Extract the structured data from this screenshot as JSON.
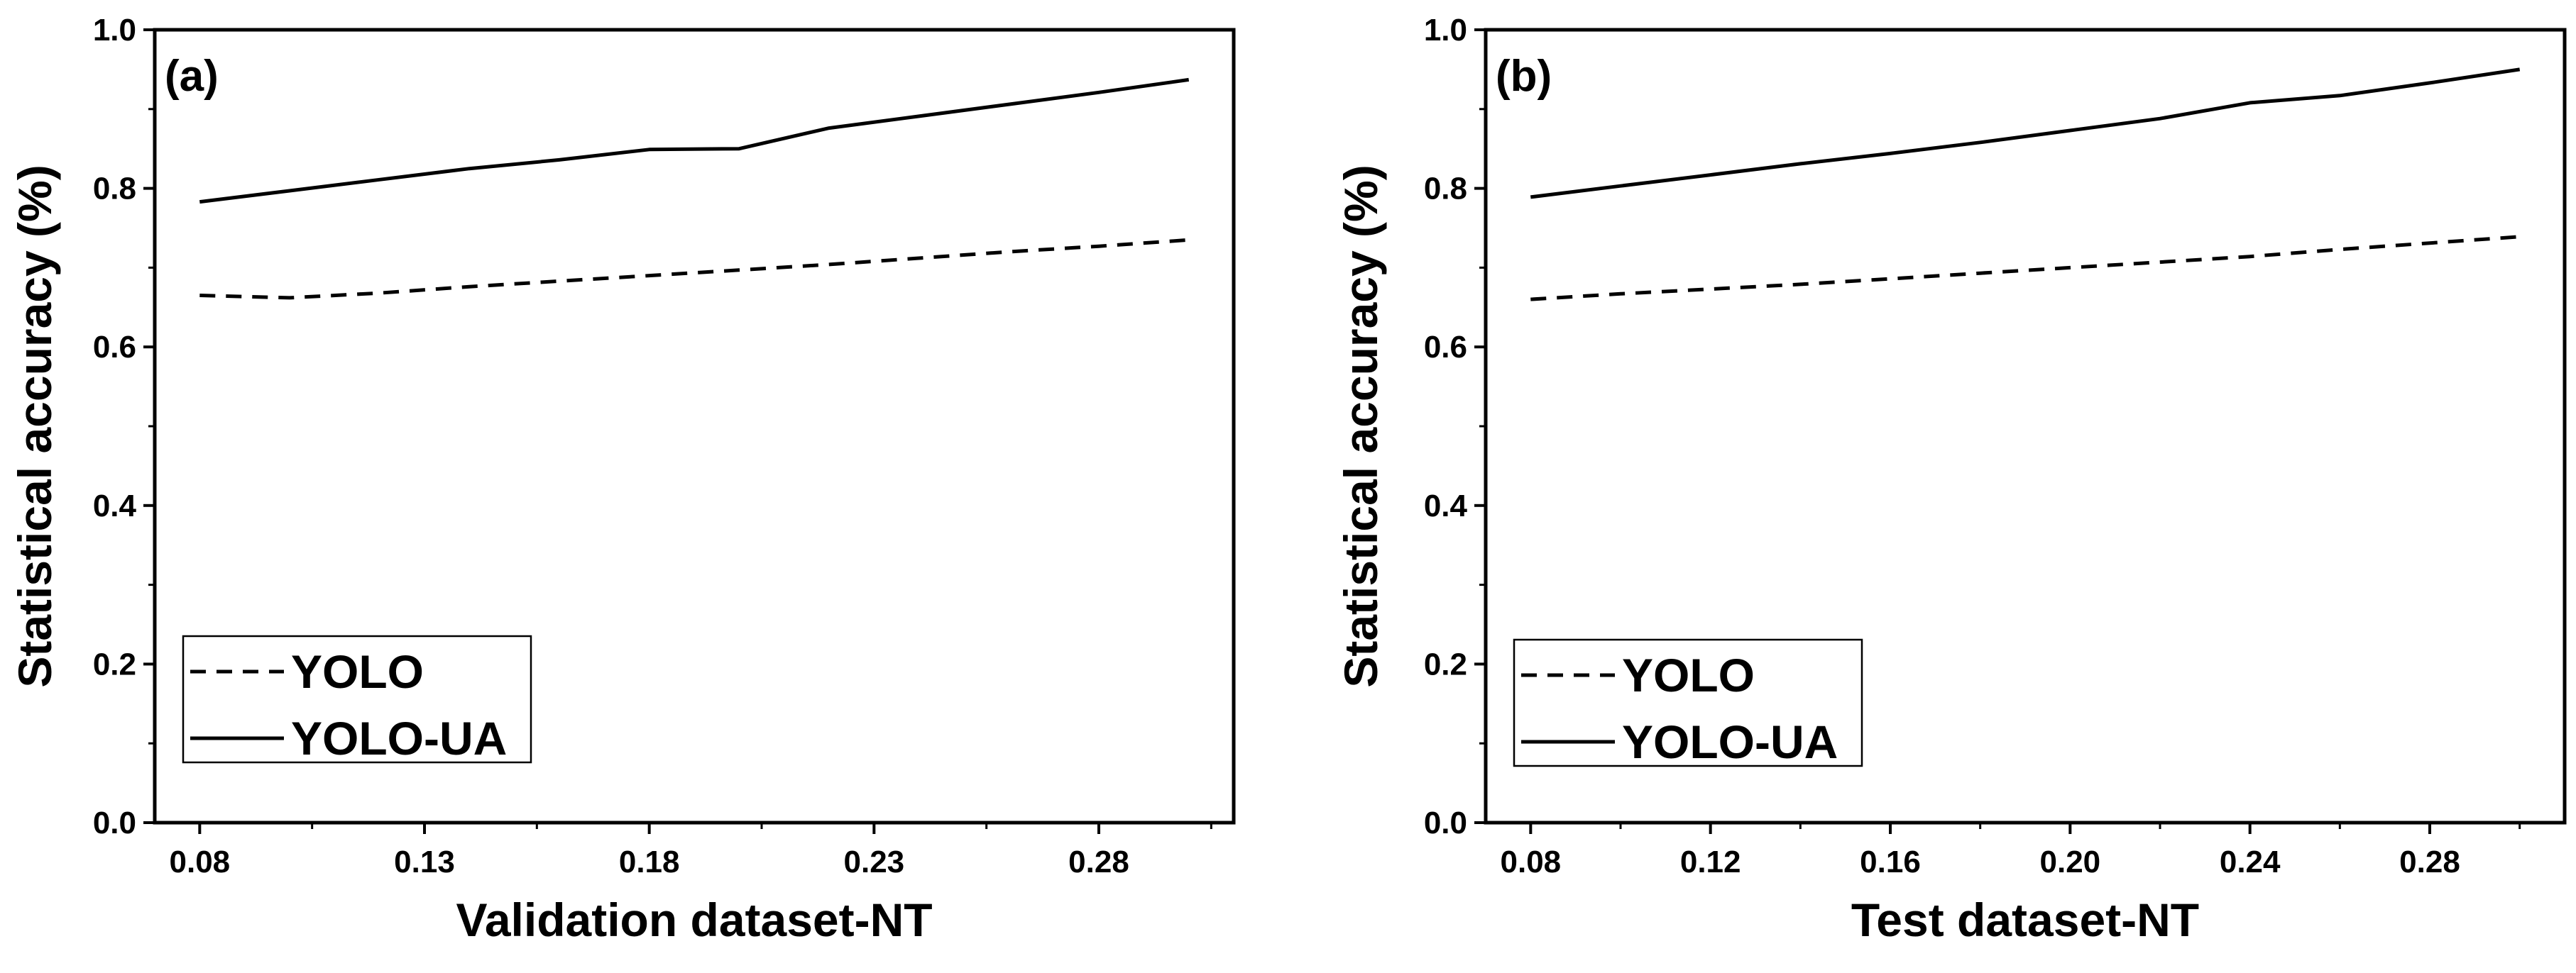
{
  "figure": {
    "background": "#ffffff",
    "line_color": "#000000"
  },
  "chart_data": [
    {
      "type": "line",
      "panel_label": "(a)",
      "title": "",
      "xlabel": "Validation dataset-NT",
      "ylabel": "Statistical accuracy (%)",
      "xlim": [
        0.07,
        0.31
      ],
      "ylim": [
        0.0,
        1.0
      ],
      "xticks": [
        0.08,
        0.13,
        0.18,
        0.23,
        0.28
      ],
      "xtick_labels": [
        "0.08",
        "0.13",
        "0.18",
        "0.23",
        "0.28"
      ],
      "xminor": [
        0.105,
        0.155,
        0.205,
        0.255,
        0.305
      ],
      "yticks": [
        0.0,
        0.2,
        0.4,
        0.6,
        0.8,
        1.0
      ],
      "ytick_labels": [
        "0.0",
        "0.2",
        "0.4",
        "0.6",
        "0.8",
        "1.0"
      ],
      "yminor": [
        0.1,
        0.3,
        0.5,
        0.7,
        0.9
      ],
      "grid": false,
      "legend_position": "lower-left",
      "series": [
        {
          "name": "YOLO",
          "style": "dashed",
          "x": [
            0.08,
            0.1,
            0.12,
            0.14,
            0.16,
            0.18,
            0.2,
            0.22,
            0.24,
            0.26,
            0.28,
            0.3
          ],
          "y": [
            0.665,
            0.662,
            0.668,
            0.676,
            0.683,
            0.69,
            0.697,
            0.704,
            0.712,
            0.72,
            0.727,
            0.735
          ]
        },
        {
          "name": "YOLO-UA",
          "style": "solid",
          "x": [
            0.08,
            0.1,
            0.12,
            0.14,
            0.16,
            0.18,
            0.2,
            0.22,
            0.24,
            0.26,
            0.28,
            0.3
          ],
          "y": [
            0.783,
            0.797,
            0.811,
            0.825,
            0.836,
            0.849,
            0.85,
            0.876,
            0.891,
            0.906,
            0.921,
            0.937
          ]
        }
      ]
    },
    {
      "type": "line",
      "panel_label": "(b)",
      "title": "",
      "xlabel": "Test dataset-NT",
      "ylabel": "Statistical accuracy (%)",
      "xlim": [
        0.07,
        0.31
      ],
      "ylim": [
        0.0,
        1.0
      ],
      "xticks": [
        0.08,
        0.12,
        0.16,
        0.2,
        0.24,
        0.28
      ],
      "xtick_labels": [
        "0.08",
        "0.12",
        "0.16",
        "0.20",
        "0.24",
        "0.28"
      ],
      "xminor": [
        0.1,
        0.14,
        0.18,
        0.22,
        0.26,
        0.3
      ],
      "yticks": [
        0.0,
        0.2,
        0.4,
        0.6,
        0.8,
        1.0
      ],
      "ytick_labels": [
        "0.0",
        "0.2",
        "0.4",
        "0.6",
        "0.8",
        "1.0"
      ],
      "yminor": [
        0.1,
        0.3,
        0.5,
        0.7,
        0.9
      ],
      "grid": false,
      "legend_position": "lower-left",
      "series": [
        {
          "name": "YOLO",
          "style": "dashed",
          "x": [
            0.08,
            0.1,
            0.12,
            0.14,
            0.16,
            0.18,
            0.2,
            0.22,
            0.24,
            0.26,
            0.28,
            0.3
          ],
          "y": [
            0.66,
            0.667,
            0.673,
            0.679,
            0.686,
            0.693,
            0.7,
            0.707,
            0.714,
            0.723,
            0.731,
            0.739
          ]
        },
        {
          "name": "YOLO-UA",
          "style": "solid",
          "x": [
            0.08,
            0.1,
            0.12,
            0.14,
            0.16,
            0.18,
            0.2,
            0.22,
            0.24,
            0.26,
            0.28,
            0.3
          ],
          "y": [
            0.789,
            0.803,
            0.817,
            0.831,
            0.844,
            0.858,
            0.873,
            0.888,
            0.908,
            0.917,
            0.933,
            0.95
          ]
        }
      ]
    }
  ]
}
